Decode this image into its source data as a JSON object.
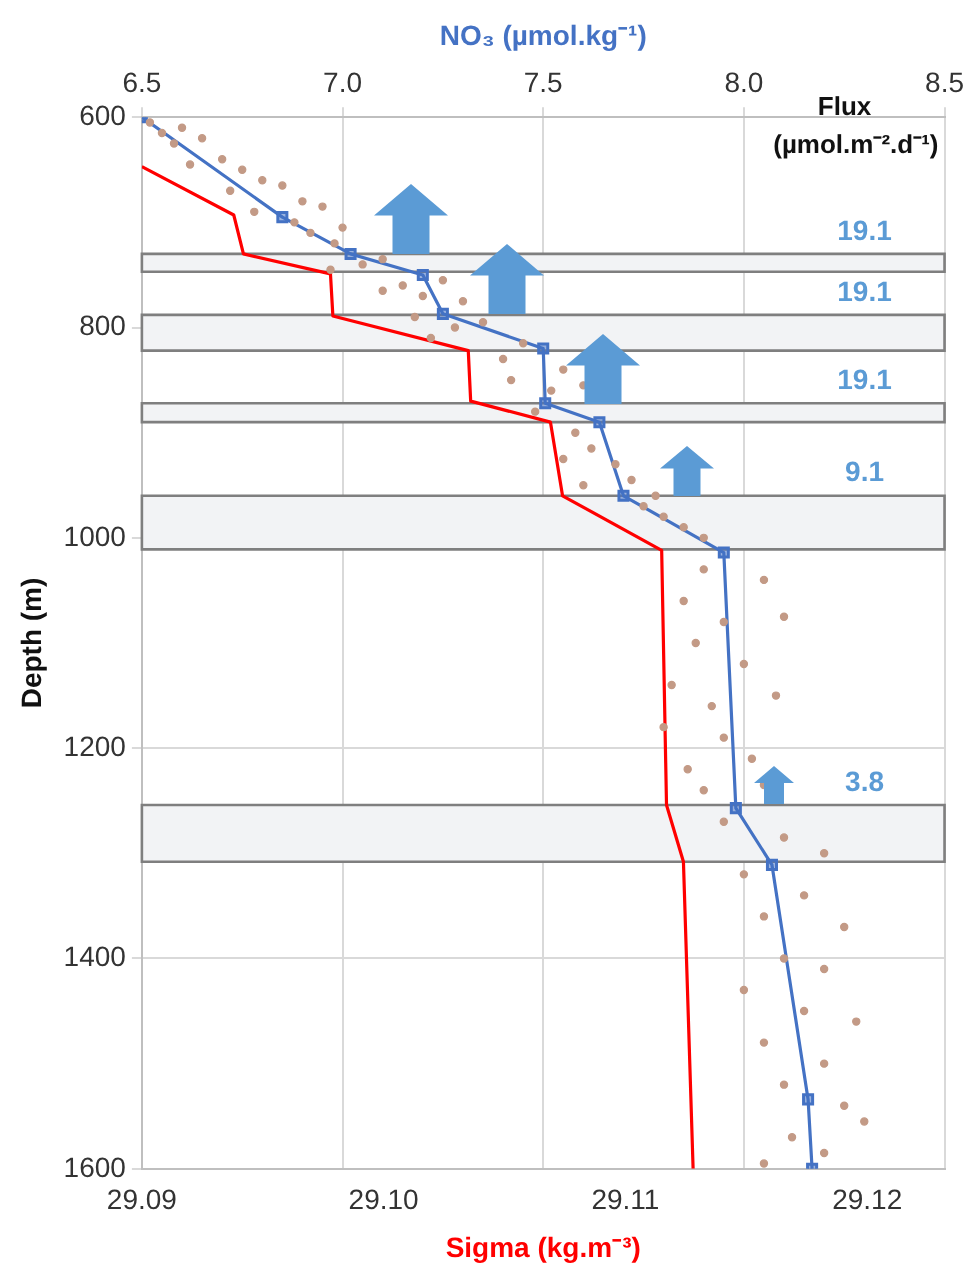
{
  "chart_data": {
    "type": "line",
    "xlabel": "Sigma (kg.m⁻³)",
    "x2label": "NO₃ (µmol.kg⁻¹)",
    "ylabel": "Depth (m)",
    "xlim": [
      29.09,
      29.1232
    ],
    "xticks": [
      29.09,
      {
        "value": 29.1,
        "label": "29.10"
      },
      29.11,
      29.12
    ],
    "x2lim": [
      6.5,
      8.5
    ],
    "x2ticks": [
      6.5,
      {
        "value": 7.0,
        "label": "7.0"
      },
      7.5,
      {
        "value": 8.0,
        "label": "8.0"
      },
      8.5
    ],
    "ylim": [
      1600,
      600
    ],
    "yticks": [
      600,
      800,
      1000,
      1200,
      1400,
      1600
    ],
    "grid": true,
    "legend": false,
    "series": [
      {
        "type": "scatter",
        "axis": "x2",
        "color": "#c39a86",
        "marker": "circle",
        "x": [
          6.52,
          6.55,
          6.6,
          6.58,
          6.65,
          6.7,
          6.62,
          6.75,
          6.8,
          6.72,
          6.85,
          6.9,
          6.78,
          6.95,
          6.88,
          6.92,
          7.0,
          6.98,
          7.05,
          7.1,
          6.97,
          7.15,
          7.2,
          7.1,
          7.25,
          7.3,
          7.18,
          7.28,
          7.35,
          7.22,
          7.4,
          7.45,
          7.55,
          7.42,
          7.52,
          7.6,
          7.48,
          7.58,
          7.62,
          7.55,
          7.68,
          7.72,
          7.6,
          7.75,
          7.8,
          7.85,
          7.9,
          7.78,
          7.9,
          8.05,
          7.85,
          7.95,
          8.1,
          7.88,
          8.0,
          7.82,
          7.92,
          8.08,
          7.8,
          7.95,
          8.02,
          7.86,
          7.9,
          8.05,
          7.95,
          8.1,
          8.2,
          8.0,
          8.15,
          8.05,
          8.25,
          8.1,
          8.2,
          8.0,
          8.15,
          8.28,
          8.05,
          8.2,
          8.1,
          8.25,
          8.3,
          8.12,
          8.2,
          8.05
        ],
        "values": [
          605,
          615,
          610,
          625,
          620,
          640,
          645,
          650,
          660,
          670,
          665,
          680,
          690,
          685,
          700,
          710,
          705,
          720,
          740,
          735,
          745,
          760,
          770,
          765,
          755,
          775,
          790,
          800,
          795,
          810,
          830,
          815,
          840,
          850,
          860,
          855,
          880,
          900,
          915,
          925,
          930,
          945,
          950,
          970,
          980,
          990,
          1000,
          960,
          1030,
          1040,
          1060,
          1080,
          1075,
          1100,
          1120,
          1140,
          1160,
          1150,
          1180,
          1190,
          1210,
          1220,
          1240,
          1235,
          1270,
          1285,
          1300,
          1320,
          1340,
          1360,
          1370,
          1400,
          1410,
          1430,
          1450,
          1460,
          1480,
          1500,
          1520,
          1540,
          1555,
          1570,
          1585,
          1595
        ]
      },
      {
        "axis": "x2",
        "color": "#4472c4",
        "marker": "square",
        "x": [
          6.5,
          6.85,
          7.02,
          7.2,
          7.25,
          7.5,
          7.505,
          7.64,
          7.7,
          7.95,
          7.98,
          8.07,
          8.16,
          8.17
        ],
        "values": [
          600,
          695,
          730,
          750,
          787,
          820,
          872,
          890,
          960,
          1014,
          1257,
          1311,
          1534,
          1600
        ]
      },
      {
        "color": "#ff0000",
        "marker": "none",
        "x": [
          29.09,
          29.0938,
          29.0942,
          29.0978,
          29.0979,
          29.1035,
          29.1036,
          29.1069,
          29.1074,
          29.1115,
          29.1117,
          29.1124,
          29.1128
        ],
        "values": [
          647,
          693,
          730,
          749,
          789,
          822,
          870,
          890,
          960,
          1012,
          1254,
          1308,
          1600
        ]
      }
    ],
    "bands": [
      {
        "axis": "y",
        "from": 730,
        "to": 747,
        "label": "19.1",
        "color": "#f2f3f5"
      },
      {
        "axis": "y",
        "from": 788,
        "to": 822,
        "label": "19.1",
        "color": "#f2f3f5"
      },
      {
        "axis": "y",
        "from": 872,
        "to": 890,
        "label": "19.1",
        "color": "#f2f3f5"
      },
      {
        "axis": "y",
        "from": 960,
        "to": 1011,
        "label": "9.1",
        "color": "#f2f3f5"
      },
      {
        "axis": "y",
        "from": 1254,
        "to": 1308,
        "label": "3.8",
        "color": "#f2f3f5"
      }
    ],
    "annotations": [
      "Flux",
      "(µmol.m⁻².d⁻¹)"
    ]
  }
}
